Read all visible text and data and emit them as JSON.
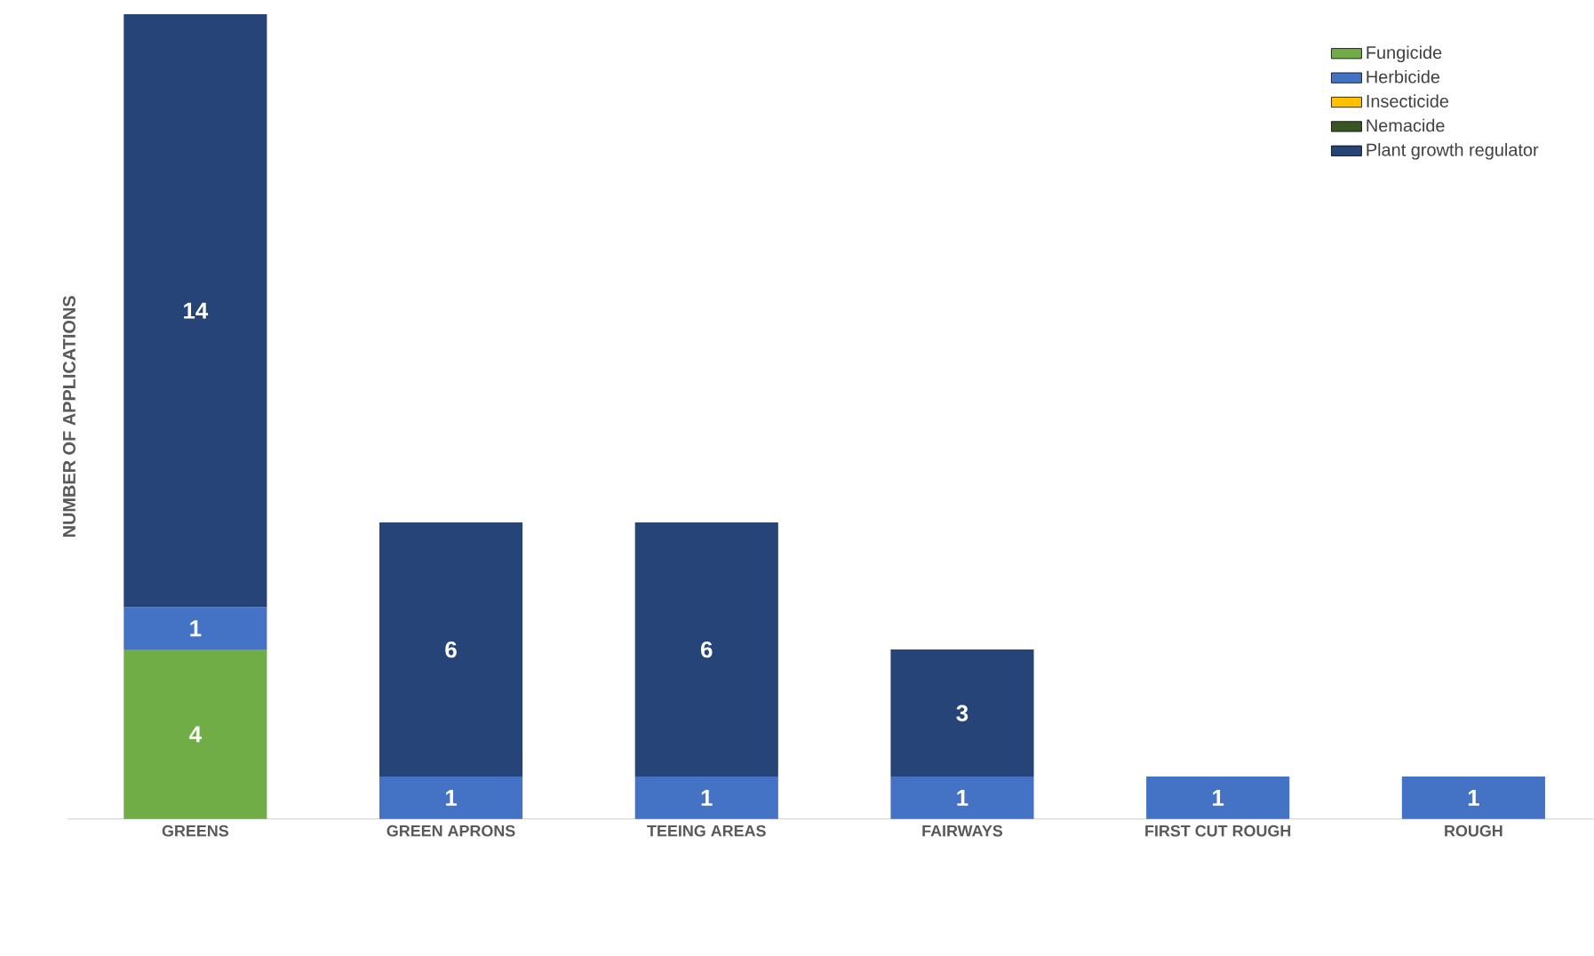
{
  "chart_data": {
    "type": "bar",
    "stacked": true,
    "ylabel": "NUMBER OF APPLICATIONS",
    "data_labels": true,
    "legend": "top right",
    "categories": [
      "GREENS",
      "GREEN APRONS",
      "TEEING AREAS",
      "FAIRWAYS",
      "FIRST CUT ROUGH",
      "ROUGH"
    ],
    "series": [
      {
        "name": "Fungicide",
        "color": "#70ad47",
        "values": [
          4,
          null,
          null,
          null,
          null,
          null
        ]
      },
      {
        "name": "Herbicide",
        "color": "#4472c4",
        "values": [
          1,
          1,
          1,
          1,
          1,
          1
        ]
      },
      {
        "name": "Insecticide",
        "color": "#ffc000",
        "values": [
          null,
          null,
          null,
          null,
          null,
          null
        ]
      },
      {
        "name": "Nemacide",
        "color": "#375623",
        "values": [
          null,
          null,
          null,
          null,
          null,
          null
        ]
      },
      {
        "name": "Plant growth regulator",
        "color": "#264478",
        "values": [
          14,
          6,
          6,
          3,
          null,
          null
        ]
      }
    ]
  }
}
